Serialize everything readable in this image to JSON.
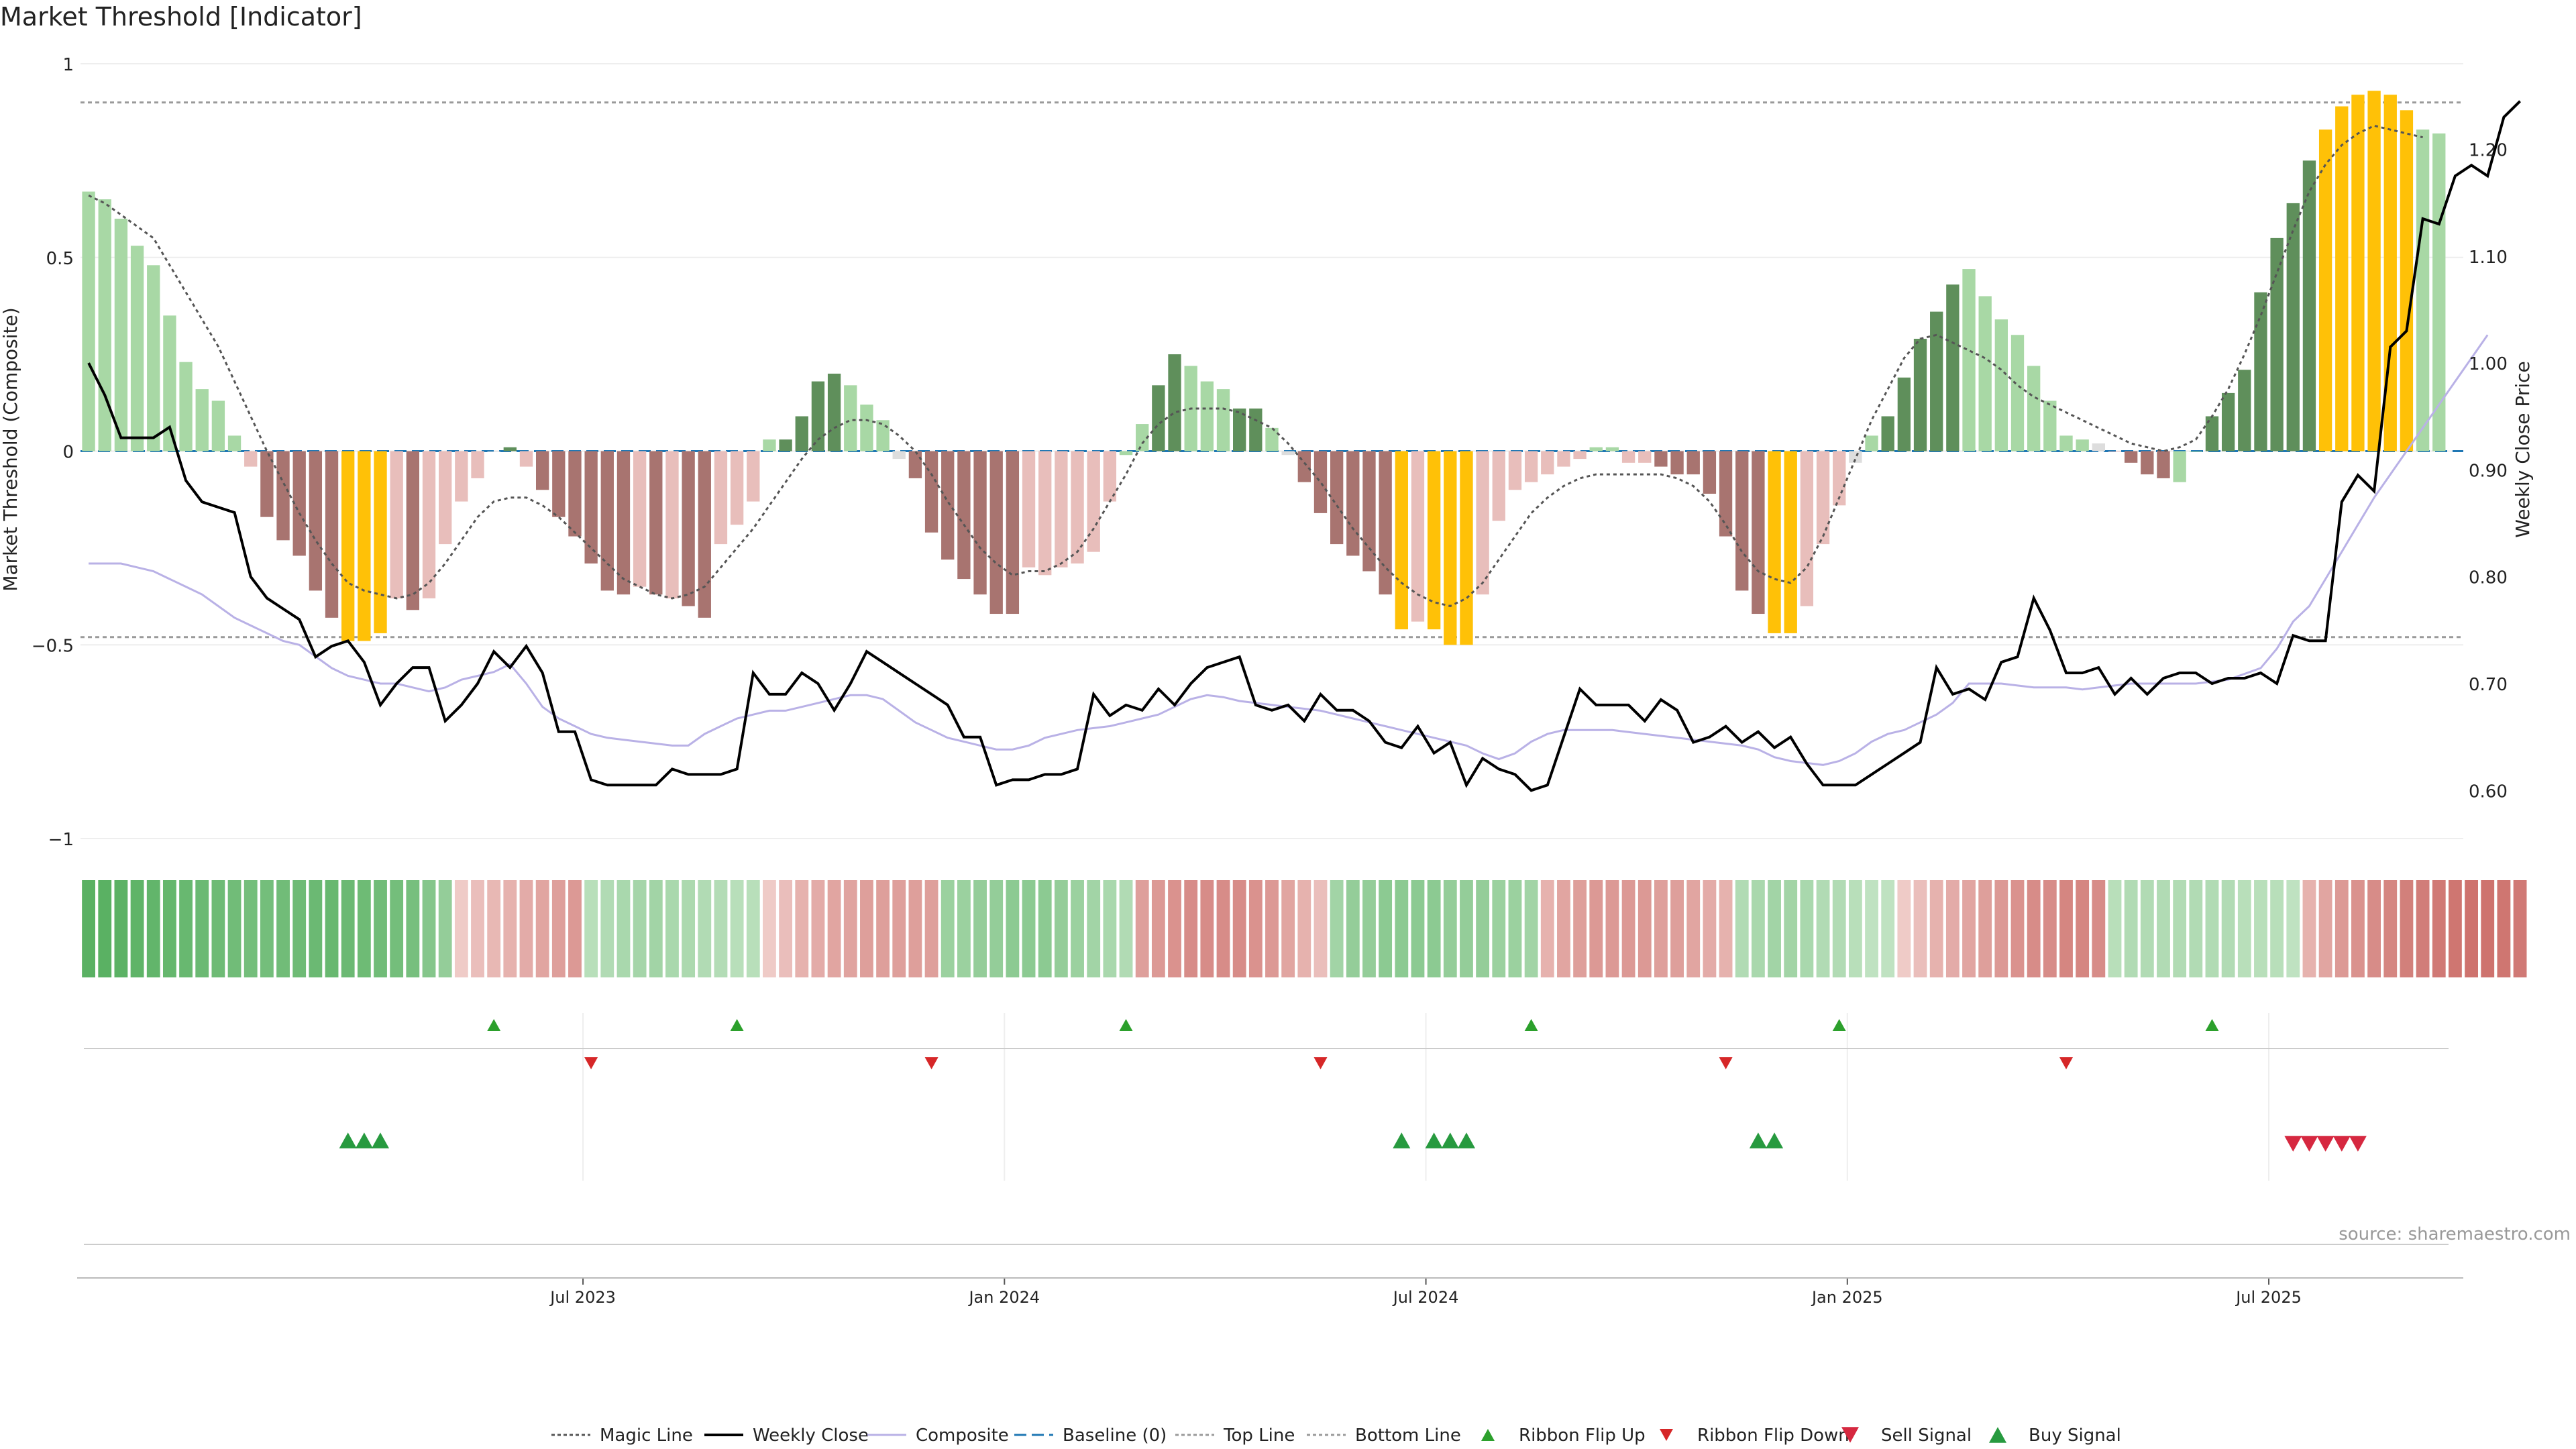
{
  "chart_data": {
    "type": "bar",
    "title": "Market Threshold [Indicator]",
    "ylabel": "Market Threshold (Composite)",
    "y2label": "Weekly Close Price",
    "source": "source: sharemaestro.com",
    "ylim": [
      -1,
      1
    ],
    "y_ticks": [
      "1",
      "0.5",
      "0",
      "−0.5",
      "−1"
    ],
    "y2lim": [
      0.555,
      1.28
    ],
    "y2_ticks": [
      "1.20",
      "1.10",
      "1.00",
      "0.90",
      "0.80",
      "0.70",
      "0.60"
    ],
    "x_ticks": [
      {
        "label": "Jul 2023",
        "week": 31
      },
      {
        "label": "Jan 2024",
        "week": 57
      },
      {
        "label": "Jul 2024",
        "week": 83
      },
      {
        "label": "Jan 2025",
        "week": 109
      },
      {
        "label": "Jul 2025",
        "week": 135
      }
    ],
    "n_weeks": 147,
    "top_line": 0.9,
    "bottom_line": -0.48,
    "composite": [
      0.67,
      0.65,
      0.6,
      0.53,
      0.48,
      0.35,
      0.23,
      0.16,
      0.13,
      0.04,
      -0.04,
      -0.17,
      -0.23,
      -0.27,
      -0.36,
      -0.43,
      -0.49,
      -0.49,
      -0.47,
      -0.38,
      -0.41,
      -0.38,
      -0.24,
      -0.13,
      -0.07,
      0.0,
      0.01,
      -0.04,
      -0.1,
      -0.17,
      -0.22,
      -0.29,
      -0.36,
      -0.37,
      -0.35,
      -0.37,
      -0.38,
      -0.4,
      -0.43,
      -0.24,
      -0.19,
      -0.13,
      0.03,
      0.03,
      0.09,
      0.18,
      0.2,
      0.17,
      0.12,
      0.08,
      -0.02,
      -0.07,
      -0.21,
      -0.28,
      -0.33,
      -0.37,
      -0.42,
      -0.42,
      -0.3,
      -0.32,
      -0.3,
      -0.29,
      -0.26,
      -0.13,
      -0.01,
      0.07,
      0.17,
      0.25,
      0.22,
      0.18,
      0.16,
      0.11,
      0.11,
      0.06,
      -0.01,
      -0.08,
      -0.16,
      -0.24,
      -0.27,
      -0.31,
      -0.37,
      -0.46,
      -0.44,
      -0.46,
      -0.5,
      -0.5,
      -0.37,
      -0.18,
      -0.1,
      -0.08,
      -0.06,
      -0.04,
      -0.02,
      0.01,
      0.01,
      -0.03,
      -0.03,
      -0.04,
      -0.06,
      -0.06,
      -0.11,
      -0.22,
      -0.36,
      -0.42,
      -0.47,
      -0.47,
      -0.4,
      -0.24,
      -0.14,
      -0.03,
      0.04,
      0.09,
      0.19,
      0.29,
      0.36,
      0.43,
      0.47,
      0.4,
      0.34,
      0.3,
      0.22,
      0.13,
      0.04,
      0.03,
      0.02,
      0.0,
      -0.03,
      -0.06,
      -0.07,
      -0.08,
      0.0,
      0.09,
      0.15,
      0.21,
      0.41,
      0.55,
      0.64,
      0.75,
      0.83,
      0.89,
      0.92,
      0.93,
      0.92,
      0.88,
      0.83,
      0.82
    ],
    "bar_state": [
      "pos-light",
      "pos-light",
      "pos-light",
      "pos-light",
      "pos-light",
      "pos-light",
      "pos-light",
      "pos-light",
      "pos-light",
      "pos-light",
      "neg-light",
      "neg-dark",
      "neg-dark",
      "neg-dark",
      "neg-dark",
      "neg-dark",
      "extreme",
      "extreme",
      "extreme",
      "neg-light",
      "neg-dark",
      "neg-light",
      "neg-light",
      "neg-light",
      "neg-light",
      "neutral",
      "pos-dark",
      "neg-light",
      "neg-dark",
      "neg-dark",
      "neg-dark",
      "neg-dark",
      "neg-dark",
      "neg-dark",
      "neg-light",
      "neg-dark",
      "neg-light",
      "neg-dark",
      "neg-dark",
      "neg-light",
      "neg-light",
      "neg-light",
      "pos-light",
      "pos-dark",
      "pos-dark",
      "pos-dark",
      "pos-dark",
      "pos-light",
      "pos-light",
      "pos-light",
      "neutral",
      "neg-dark",
      "neg-dark",
      "neg-dark",
      "neg-dark",
      "neg-dark",
      "neg-dark",
      "neg-dark",
      "neg-light",
      "neg-light",
      "neg-light",
      "neg-light",
      "neg-light",
      "neg-light",
      "pos-light",
      "pos-light",
      "pos-dark",
      "pos-dark",
      "pos-light",
      "pos-light",
      "pos-light",
      "pos-dark",
      "pos-dark",
      "pos-light",
      "neutral",
      "neg-dark",
      "neg-dark",
      "neg-dark",
      "neg-dark",
      "neg-dark",
      "neg-dark",
      "extreme",
      "neg-light",
      "extreme",
      "extreme",
      "extreme",
      "neg-light",
      "neg-light",
      "neg-light",
      "neg-light",
      "neg-light",
      "neg-light",
      "neg-light",
      "pos-light",
      "pos-light",
      "neg-light",
      "neg-light",
      "neg-dark",
      "neg-dark",
      "neg-dark",
      "neg-dark",
      "neg-dark",
      "neg-dark",
      "neg-dark",
      "extreme",
      "extreme",
      "neg-light",
      "neg-light",
      "neg-light",
      "neutral",
      "pos-light",
      "pos-dark",
      "pos-dark",
      "pos-dark",
      "pos-dark",
      "pos-dark",
      "pos-light",
      "pos-light",
      "pos-light",
      "pos-light",
      "pos-light",
      "pos-light",
      "pos-light",
      "pos-light",
      "neutral",
      "neg-light",
      "neg-dark",
      "neg-dark",
      "neg-dark",
      "pos-light",
      "pos-light",
      "pos-dark",
      "pos-dark",
      "pos-dark",
      "pos-dark",
      "pos-dark",
      "pos-dark",
      "pos-dark",
      "extreme",
      "extreme",
      "extreme",
      "extreme",
      "extreme",
      "extreme",
      "pos-light",
      "pos-light"
    ],
    "magic_line": [
      0.66,
      0.64,
      0.61,
      0.58,
      0.55,
      0.48,
      0.41,
      0.34,
      0.27,
      0.18,
      0.09,
      0.0,
      -0.08,
      -0.16,
      -0.23,
      -0.29,
      -0.34,
      -0.36,
      -0.37,
      -0.38,
      -0.37,
      -0.34,
      -0.29,
      -0.23,
      -0.17,
      -0.13,
      -0.12,
      -0.12,
      -0.14,
      -0.17,
      -0.21,
      -0.25,
      -0.29,
      -0.33,
      -0.35,
      -0.37,
      -0.38,
      -0.37,
      -0.35,
      -0.3,
      -0.25,
      -0.2,
      -0.14,
      -0.08,
      -0.02,
      0.03,
      0.06,
      0.08,
      0.08,
      0.07,
      0.04,
      0.0,
      -0.06,
      -0.13,
      -0.19,
      -0.25,
      -0.29,
      -0.32,
      -0.31,
      -0.31,
      -0.29,
      -0.26,
      -0.2,
      -0.13,
      -0.06,
      0.02,
      0.07,
      0.1,
      0.11,
      0.11,
      0.11,
      0.1,
      0.08,
      0.06,
      0.02,
      -0.03,
      -0.08,
      -0.14,
      -0.2,
      -0.25,
      -0.3,
      -0.34,
      -0.37,
      -0.39,
      -0.4,
      -0.38,
      -0.34,
      -0.28,
      -0.22,
      -0.16,
      -0.12,
      -0.09,
      -0.07,
      -0.06,
      -0.06,
      -0.06,
      -0.06,
      -0.06,
      -0.07,
      -0.09,
      -0.13,
      -0.19,
      -0.26,
      -0.31,
      -0.33,
      -0.34,
      -0.3,
      -0.22,
      -0.12,
      -0.02,
      0.08,
      0.16,
      0.24,
      0.29,
      0.3,
      0.28,
      0.26,
      0.24,
      0.21,
      0.17,
      0.14,
      0.12,
      0.1,
      0.08,
      0.06,
      0.04,
      0.02,
      0.01,
      0.0,
      0.01,
      0.03,
      0.09,
      0.16,
      0.25,
      0.35,
      0.46,
      0.57,
      0.67,
      0.74,
      0.79,
      0.82,
      0.84,
      0.83,
      0.82,
      0.81
    ],
    "weekly_close": [
      1.0,
      0.97,
      0.93,
      0.93,
      0.93,
      0.94,
      0.89,
      0.87,
      0.865,
      0.86,
      0.8,
      0.78,
      0.77,
      0.76,
      0.725,
      0.735,
      0.74,
      0.72,
      0.68,
      0.7,
      0.715,
      0.715,
      0.665,
      0.68,
      0.7,
      0.73,
      0.715,
      0.735,
      0.71,
      0.655,
      0.655,
      0.61,
      0.605,
      0.605,
      0.605,
      0.605,
      0.62,
      0.615,
      0.615,
      0.615,
      0.62,
      0.71,
      0.69,
      0.69,
      0.71,
      0.7,
      0.675,
      0.7,
      0.73,
      0.72,
      0.71,
      0.7,
      0.69,
      0.68,
      0.65,
      0.65,
      0.605,
      0.61,
      0.61,
      0.615,
      0.615,
      0.62,
      0.69,
      0.67,
      0.68,
      0.675,
      0.695,
      0.68,
      0.7,
      0.715,
      0.72,
      0.725,
      0.68,
      0.675,
      0.68,
      0.665,
      0.69,
      0.675,
      0.675,
      0.665,
      0.645,
      0.64,
      0.66,
      0.635,
      0.645,
      0.605,
      0.63,
      0.62,
      0.615,
      0.6,
      0.605,
      0.65,
      0.695,
      0.68,
      0.68,
      0.68,
      0.665,
      0.685,
      0.675,
      0.645,
      0.65,
      0.66,
      0.645,
      0.655,
      0.64,
      0.65,
      0.625,
      0.605,
      0.605,
      0.605,
      0.615,
      0.625,
      0.635,
      0.645,
      0.715,
      0.69,
      0.695,
      0.685,
      0.72,
      0.725,
      0.78,
      0.75,
      0.71,
      0.71,
      0.715,
      0.69,
      0.705,
      0.69,
      0.705,
      0.71,
      0.71,
      0.7,
      0.705,
      0.705,
      0.71,
      0.7,
      0.745,
      0.74,
      0.74,
      0.87,
      0.895,
      0.88,
      1.015,
      1.03,
      1.135,
      1.13,
      1.175,
      1.185,
      1.175,
      1.23,
      1.245
    ],
    "composite_line": [
      -0.29,
      -0.29,
      -0.29,
      -0.3,
      -0.31,
      -0.33,
      -0.35,
      -0.37,
      -0.4,
      -0.43,
      -0.45,
      -0.47,
      -0.49,
      -0.5,
      -0.53,
      -0.56,
      -0.58,
      -0.59,
      -0.6,
      -0.6,
      -0.61,
      -0.62,
      -0.61,
      -0.59,
      -0.58,
      -0.57,
      -0.55,
      -0.6,
      -0.66,
      -0.69,
      -0.71,
      -0.73,
      -0.74,
      -0.745,
      -0.75,
      -0.755,
      -0.76,
      -0.76,
      -0.73,
      -0.71,
      -0.69,
      -0.68,
      -0.67,
      -0.67,
      -0.66,
      -0.65,
      -0.64,
      -0.63,
      -0.63,
      -0.64,
      -0.67,
      -0.7,
      -0.72,
      -0.74,
      -0.75,
      -0.76,
      -0.77,
      -0.77,
      -0.76,
      -0.74,
      -0.73,
      -0.72,
      -0.715,
      -0.71,
      -0.7,
      -0.69,
      -0.68,
      -0.66,
      -0.64,
      -0.63,
      -0.635,
      -0.645,
      -0.65,
      -0.655,
      -0.66,
      -0.665,
      -0.67,
      -0.68,
      -0.69,
      -0.7,
      -0.71,
      -0.72,
      -0.73,
      -0.74,
      -0.75,
      -0.76,
      -0.78,
      -0.795,
      -0.78,
      -0.75,
      -0.73,
      -0.72,
      -0.72,
      -0.72,
      -0.72,
      -0.725,
      -0.73,
      -0.735,
      -0.74,
      -0.745,
      -0.75,
      -0.755,
      -0.76,
      -0.77,
      -0.79,
      -0.8,
      -0.805,
      -0.81,
      -0.8,
      -0.78,
      -0.75,
      -0.73,
      -0.72,
      -0.7,
      -0.68,
      -0.65,
      -0.6,
      -0.6,
      -0.6,
      -0.605,
      -0.61,
      -0.61,
      -0.61,
      -0.615,
      -0.61,
      -0.605,
      -0.6,
      -0.6,
      -0.6,
      -0.6,
      -0.6,
      -0.595,
      -0.59,
      -0.575,
      -0.56,
      -0.51,
      -0.44,
      -0.4,
      -0.33,
      -0.26,
      -0.19,
      -0.12,
      -0.06,
      0.0,
      0.06,
      0.12,
      0.18,
      0.24,
      0.3
    ],
    "ribbon": [
      0.9,
      0.9,
      0.88,
      0.86,
      0.84,
      0.82,
      0.8,
      0.78,
      0.76,
      0.74,
      0.72,
      0.72,
      0.74,
      0.76,
      0.78,
      0.8,
      0.78,
      0.76,
      0.74,
      0.72,
      0.7,
      0.6,
      0.5,
      -0.1,
      -0.2,
      -0.25,
      -0.3,
      -0.35,
      -0.4,
      -0.45,
      -0.5,
      0.25,
      0.3,
      0.35,
      0.38,
      0.4,
      0.35,
      0.33,
      0.3,
      0.28,
      0.25,
      0.25,
      -0.1,
      -0.2,
      -0.3,
      -0.35,
      -0.4,
      -0.42,
      -0.45,
      -0.45,
      -0.45,
      -0.45,
      -0.45,
      0.45,
      0.45,
      0.5,
      0.5,
      0.55,
      0.55,
      0.55,
      0.5,
      0.45,
      0.4,
      0.35,
      0.3,
      -0.45,
      -0.5,
      -0.55,
      -0.6,
      -0.6,
      -0.6,
      -0.6,
      -0.55,
      -0.5,
      -0.4,
      -0.3,
      -0.2,
      0.4,
      0.5,
      0.5,
      0.55,
      0.55,
      0.55,
      0.55,
      0.5,
      0.5,
      0.5,
      0.45,
      0.45,
      0.4,
      -0.3,
      -0.4,
      -0.45,
      -0.5,
      -0.5,
      -0.5,
      -0.5,
      -0.45,
      -0.45,
      -0.4,
      -0.35,
      -0.3,
      0.3,
      0.35,
      0.4,
      0.4,
      0.35,
      0.3,
      0.3,
      0.25,
      0.2,
      0.2,
      -0.1,
      -0.2,
      -0.3,
      -0.35,
      -0.4,
      -0.45,
      -0.5,
      -0.55,
      -0.6,
      -0.6,
      -0.65,
      -0.65,
      -0.6,
      0.25,
      0.3,
      0.3,
      0.3,
      0.3,
      0.3,
      0.3,
      0.3,
      0.25,
      0.25,
      0.25,
      0.2,
      -0.3,
      -0.4,
      -0.5,
      -0.55,
      -0.6,
      -0.65,
      -0.7,
      -0.72,
      -0.75,
      -0.78,
      -0.8,
      -0.8,
      -0.78,
      -0.75
    ],
    "ribbon_flip_up": [
      25,
      40,
      64,
      89,
      108,
      131
    ],
    "ribbon_flip_down": [
      31,
      52,
      76,
      101,
      122
    ],
    "buy_signal": [
      16,
      17,
      18,
      81,
      83,
      84,
      85,
      103,
      104
    ],
    "sell_signal": [
      136,
      137,
      138,
      139,
      140
    ],
    "legend": [
      "Magic Line",
      "Weekly Close",
      "Composite",
      "Baseline (0)",
      "Top Line",
      "Bottom Line",
      "Ribbon Flip Up",
      "Ribbon Flip Down",
      "Sell Signal",
      "Buy Signal"
    ],
    "colors": {
      "pos_light": "#a8d8a5",
      "pos_dark": "#5f8f5b",
      "neg_light": "#e8bebb",
      "neg_dark": "#a87470",
      "extreme": "#ffc107",
      "neutral": "#dddddd",
      "magic": "#555555",
      "close": "#000000",
      "composite": "#b9b1e6",
      "baseline": "#1f77b4",
      "refline": "#9a9a9a",
      "grid": "#eeeeee",
      "up_marker": "#2ca02c",
      "down_marker": "#d62728",
      "sell": "#d62840",
      "buy": "#279a3f"
    }
  }
}
